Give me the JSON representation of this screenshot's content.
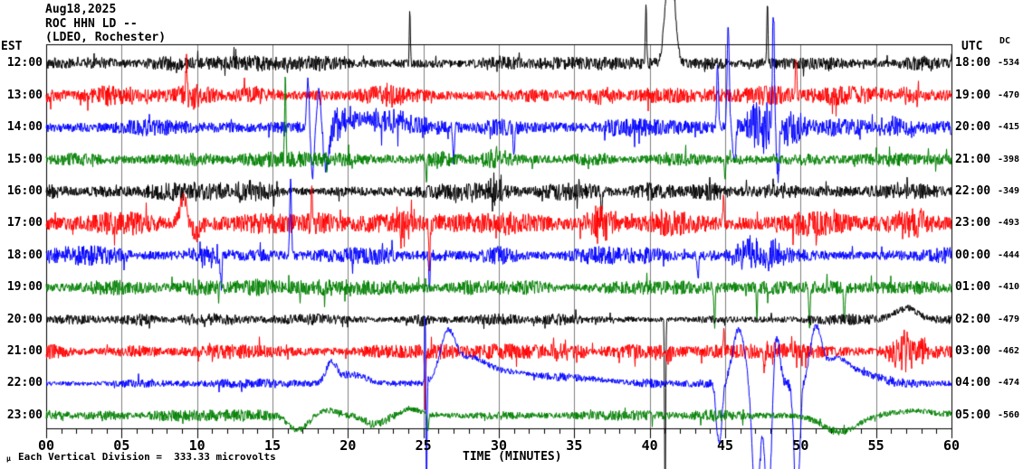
{
  "header": {
    "date": "Aug18,2025",
    "station": "ROC HHN LD --",
    "location": "(LDEO, Rochester)"
  },
  "axes": {
    "left_title": "EST",
    "right_title": "UTC",
    "dc_title": "DC",
    "x_title": "TIME (MINUTES)",
    "x_tick_labels": [
      "00",
      "05",
      "10",
      "15",
      "20",
      "25",
      "30",
      "35",
      "40",
      "45",
      "50",
      "55",
      "60"
    ]
  },
  "footer": {
    "mu": "μ",
    "scale_note": "Each Vertical Division =  333.33 microvolts"
  },
  "chart_data": {
    "type": "line",
    "title": "ROC HHN LD -- (LDEO, Rochester) helicorder record, Aug18,2025",
    "xlabel": "TIME (MINUTES)",
    "x_range": [
      0,
      60
    ],
    "x_major_tick": 5,
    "x_minor_tick": 1,
    "grid": "vertical gray line every 5 minutes",
    "grid_color": "#7f7f7f",
    "frame_color": "#000000",
    "scale": "Each Vertical Division = 333.33 microvolts",
    "trace_colors_cycle": [
      "#000000",
      "#ff0000",
      "#0000ff",
      "#008000"
    ],
    "series": [
      {
        "est": "12:00",
        "utc": "18:00",
        "dc": -534,
        "color": "#000000",
        "noise_amp": 8,
        "seed": 11,
        "events": [
          {
            "t": 2.5,
            "w": 2,
            "amp": 5,
            "type": "noise"
          },
          {
            "t": 24.1,
            "w": 0.05,
            "amp": 58,
            "type": "spike"
          },
          {
            "t": 39.75,
            "w": 0.06,
            "amp": 66,
            "type": "spike"
          },
          {
            "t": 41.35,
            "w": 0.4,
            "amp": 125,
            "type": "pulse"
          },
          {
            "t": 47.8,
            "w": 0.05,
            "amp": 70,
            "type": "spike"
          }
        ]
      },
      {
        "est": "13:00",
        "utc": "19:00",
        "dc": -470,
        "color": "#ff0000",
        "noise_amp": 10,
        "seed": 22,
        "events": [
          {
            "t": 9.4,
            "w": 0.9,
            "amp": 9,
            "type": "noise"
          },
          {
            "t": 9.3,
            "w": 0.06,
            "amp": 36,
            "type": "spike"
          },
          {
            "t": 23,
            "w": 1,
            "amp": 7,
            "type": "noise"
          },
          {
            "t": 37,
            "w": 1.2,
            "amp": 7,
            "type": "noise"
          },
          {
            "t": 49.7,
            "w": 0.06,
            "amp": 42,
            "type": "spike"
          },
          {
            "t": 56.5,
            "w": 1.5,
            "amp": 7,
            "type": "noise"
          }
        ]
      },
      {
        "est": "14:00",
        "utc": "20:00",
        "dc": -415,
        "color": "#0000ff",
        "noise_amp": 9,
        "seed": 33,
        "events": [
          {
            "t": 17.35,
            "w": 0.12,
            "amp": 52,
            "type": "spike"
          },
          {
            "t": 17.65,
            "w": 0.15,
            "amp": -58,
            "type": "spike"
          },
          {
            "t": 18.1,
            "w": 0.2,
            "amp": 42,
            "type": "spike"
          },
          {
            "t": 18.55,
            "w": 0.3,
            "amp": -46,
            "type": "spike"
          },
          {
            "t": 19.3,
            "w": 0.8,
            "amp": 18,
            "type": "noise"
          },
          {
            "t": 21.5,
            "w": 2.5,
            "amp": 9,
            "type": "pulse"
          },
          {
            "t": 23,
            "w": 3,
            "amp": 7,
            "type": "noise"
          },
          {
            "t": 27,
            "w": 0.07,
            "amp": -35,
            "type": "spike"
          },
          {
            "t": 31,
            "w": 0.07,
            "amp": -30,
            "type": "spike"
          },
          {
            "t": 44.5,
            "w": 0.08,
            "amp": 72,
            "type": "spike"
          },
          {
            "t": 45.2,
            "w": 0.1,
            "amp": 112,
            "type": "spike"
          },
          {
            "t": 45.6,
            "w": 0.12,
            "amp": -40,
            "type": "spike"
          },
          {
            "t": 47.3,
            "w": 1.2,
            "amp": 26,
            "type": "noise"
          },
          {
            "t": 48.2,
            "w": 0.09,
            "amp": 128,
            "type": "spike"
          },
          {
            "t": 48.5,
            "w": 0.1,
            "amp": -60,
            "type": "spike"
          },
          {
            "t": 49.6,
            "w": 0.8,
            "amp": 22,
            "type": "noise"
          },
          {
            "t": 56.5,
            "w": 1.5,
            "amp": 10,
            "type": "noise"
          }
        ]
      },
      {
        "est": "15:00",
        "utc": "21:00",
        "dc": -398,
        "color": "#008000",
        "noise_amp": 8,
        "seed": 44,
        "events": [
          {
            "t": 15.85,
            "w": 0.06,
            "amp": 100,
            "type": "spike"
          },
          {
            "t": 25.2,
            "w": 0.05,
            "amp": -24,
            "type": "spike"
          },
          {
            "t": 29.6,
            "w": 1,
            "amp": 7,
            "type": "noise"
          },
          {
            "t": 45,
            "w": 0.06,
            "amp": -22,
            "type": "spike"
          }
        ]
      },
      {
        "est": "16:00",
        "utc": "22:00",
        "dc": -349,
        "color": "#000000",
        "noise_amp": 9,
        "seed": 55,
        "events": [
          {
            "t": 13,
            "w": 1,
            "amp": 5,
            "type": "noise"
          },
          {
            "t": 29.8,
            "w": 0.5,
            "amp": 20,
            "type": "noise"
          },
          {
            "t": 36.8,
            "w": 0.06,
            "amp": -28,
            "type": "spike"
          },
          {
            "t": 49,
            "w": 1,
            "amp": 5,
            "type": "noise"
          }
        ]
      },
      {
        "est": "17:00",
        "utc": "23:00",
        "dc": -493,
        "color": "#ff0000",
        "noise_amp": 12,
        "seed": 66,
        "events": [
          {
            "t": 9.1,
            "w": 0.35,
            "amp": 28,
            "type": "pulse"
          },
          {
            "t": 9.9,
            "w": 0.5,
            "amp": -10,
            "type": "pulse"
          },
          {
            "t": 9.6,
            "w": 1,
            "amp": 8,
            "type": "noise"
          },
          {
            "t": 17.6,
            "w": 0.06,
            "amp": 40,
            "type": "spike"
          },
          {
            "t": 23.6,
            "w": 0.8,
            "amp": 20,
            "type": "noise"
          },
          {
            "t": 25.4,
            "w": 0.07,
            "amp": -44,
            "type": "spike"
          },
          {
            "t": 30,
            "w": 0.8,
            "amp": 11,
            "type": "noise"
          },
          {
            "t": 36.8,
            "w": 1.2,
            "amp": 18,
            "type": "noise"
          },
          {
            "t": 40.8,
            "w": 0.6,
            "amp": 12,
            "type": "noise"
          },
          {
            "t": 44.9,
            "w": 0.06,
            "amp": 30,
            "type": "spike"
          },
          {
            "t": 57.3,
            "w": 1.1,
            "amp": 15,
            "type": "noise"
          }
        ]
      },
      {
        "est": "18:00",
        "utc": "00:00",
        "dc": -444,
        "color": "#0000ff",
        "noise_amp": 9,
        "seed": 77,
        "events": [
          {
            "t": 10.9,
            "w": 1.2,
            "amp": 12,
            "type": "noise"
          },
          {
            "t": 11.6,
            "w": 0.07,
            "amp": -40,
            "type": "spike"
          },
          {
            "t": 16.2,
            "w": 0.08,
            "amp": 85,
            "type": "spike"
          },
          {
            "t": 25.4,
            "w": 0.06,
            "amp": -34,
            "type": "spike"
          },
          {
            "t": 43.2,
            "w": 0.07,
            "amp": -24,
            "type": "spike"
          },
          {
            "t": 46.6,
            "w": 1,
            "amp": 16,
            "type": "noise"
          },
          {
            "t": 48.1,
            "w": 0.8,
            "amp": 13,
            "type": "noise"
          }
        ]
      },
      {
        "est": "19:00",
        "utc": "01:00",
        "dc": -410,
        "color": "#008000",
        "noise_amp": 8,
        "seed": 88,
        "events": [
          {
            "t": 30,
            "w": 1,
            "amp": 5,
            "type": "noise"
          },
          {
            "t": 44.3,
            "w": 0.06,
            "amp": -42,
            "type": "spike"
          },
          {
            "t": 47.1,
            "w": 0.06,
            "amp": -30,
            "type": "spike"
          },
          {
            "t": 50.6,
            "w": 0.06,
            "amp": -46,
            "type": "spike"
          },
          {
            "t": 52.9,
            "w": 0.07,
            "amp": -36,
            "type": "spike"
          }
        ]
      },
      {
        "est": "20:00",
        "utc": "02:00",
        "dc": -479,
        "color": "#000000",
        "noise_amp": 6,
        "seed": 99,
        "events": [
          {
            "t": 10,
            "w": 1.5,
            "amp": 4,
            "type": "noise"
          },
          {
            "t": 25,
            "w": 0.5,
            "amp": 7,
            "type": "noise"
          },
          {
            "t": 41.02,
            "w": 0.05,
            "amp": -210,
            "type": "spike"
          },
          {
            "t": 57,
            "w": 1,
            "amp": 13,
            "type": "pulse"
          }
        ]
      },
      {
        "est": "21:00",
        "utc": "03:00",
        "dc": -462,
        "color": "#ff0000",
        "noise_amp": 8,
        "seed": 111,
        "events": [
          {
            "t": 25.12,
            "w": 0.05,
            "amp": -62,
            "type": "spike"
          },
          {
            "t": 34.8,
            "w": 1,
            "amp": 10,
            "type": "noise"
          },
          {
            "t": 41,
            "w": 0.8,
            "amp": 9,
            "type": "noise"
          },
          {
            "t": 44.9,
            "w": 0.06,
            "amp": 24,
            "type": "spike"
          },
          {
            "t": 47.6,
            "w": 0.07,
            "amp": -20,
            "type": "spike"
          },
          {
            "t": 56.9,
            "w": 1.1,
            "amp": 24,
            "type": "noise"
          }
        ]
      },
      {
        "est": "22:00",
        "utc": "04:00",
        "dc": -474,
        "color": "#0000ff",
        "noise_amp": 5,
        "seed": 122,
        "events": [
          {
            "t": 18.9,
            "w": 0.5,
            "amp": 22,
            "type": "pulse"
          },
          {
            "t": 20.3,
            "w": 1.2,
            "amp": 10,
            "type": "pulse"
          },
          {
            "t": 25.13,
            "w": 0.05,
            "amp": 92,
            "type": "spike"
          },
          {
            "t": 25.2,
            "w": 0.05,
            "amp": -140,
            "type": "spike"
          },
          {
            "t": 26.6,
            "w": 0.7,
            "amp": 48,
            "type": "pulse"
          },
          {
            "t": 28,
            "w": 1.5,
            "amp": 24,
            "type": "pulse"
          },
          {
            "t": 30.5,
            "w": 2.5,
            "amp": 12,
            "type": "pulse"
          },
          {
            "t": 35,
            "w": 3,
            "amp": 6,
            "type": "pulse"
          },
          {
            "t": 44.6,
            "w": 0.25,
            "amp": -68,
            "type": "pulse"
          },
          {
            "t": 45.9,
            "w": 0.55,
            "amp": 60,
            "type": "pulse"
          },
          {
            "t": 47.05,
            "w": 0.35,
            "amp": -135,
            "type": "pulse"
          },
          {
            "t": 47.85,
            "w": 0.3,
            "amp": -135,
            "type": "pulse"
          },
          {
            "t": 48.4,
            "w": 0.3,
            "amp": 54,
            "type": "pulse"
          },
          {
            "t": 49.75,
            "w": 0.25,
            "amp": -135,
            "type": "pulse"
          },
          {
            "t": 51,
            "w": 0.5,
            "amp": 56,
            "type": "pulse"
          },
          {
            "t": 52.3,
            "w": 1.2,
            "amp": 26,
            "type": "pulse"
          },
          {
            "t": 54.2,
            "w": 1.6,
            "amp": 10,
            "type": "pulse"
          }
        ]
      },
      {
        "est": "23:00",
        "utc": "05:00",
        "dc": -560,
        "color": "#008000",
        "noise_amp": 6,
        "seed": 133,
        "events": [
          {
            "t": 16.7,
            "w": 0.9,
            "amp": -16,
            "type": "pulse"
          },
          {
            "t": 18.6,
            "w": 1,
            "amp": 6,
            "type": "pulse"
          },
          {
            "t": 21.8,
            "w": 0.9,
            "amp": -10,
            "type": "pulse"
          },
          {
            "t": 24.2,
            "w": 0.9,
            "amp": 7,
            "type": "pulse"
          },
          {
            "t": 25.3,
            "w": 0.06,
            "amp": -20,
            "type": "spike"
          },
          {
            "t": 52.6,
            "w": 1.6,
            "amp": -18,
            "type": "pulse"
          },
          {
            "t": 57.5,
            "w": 2,
            "amp": 5,
            "type": "pulse"
          }
        ]
      }
    ]
  }
}
